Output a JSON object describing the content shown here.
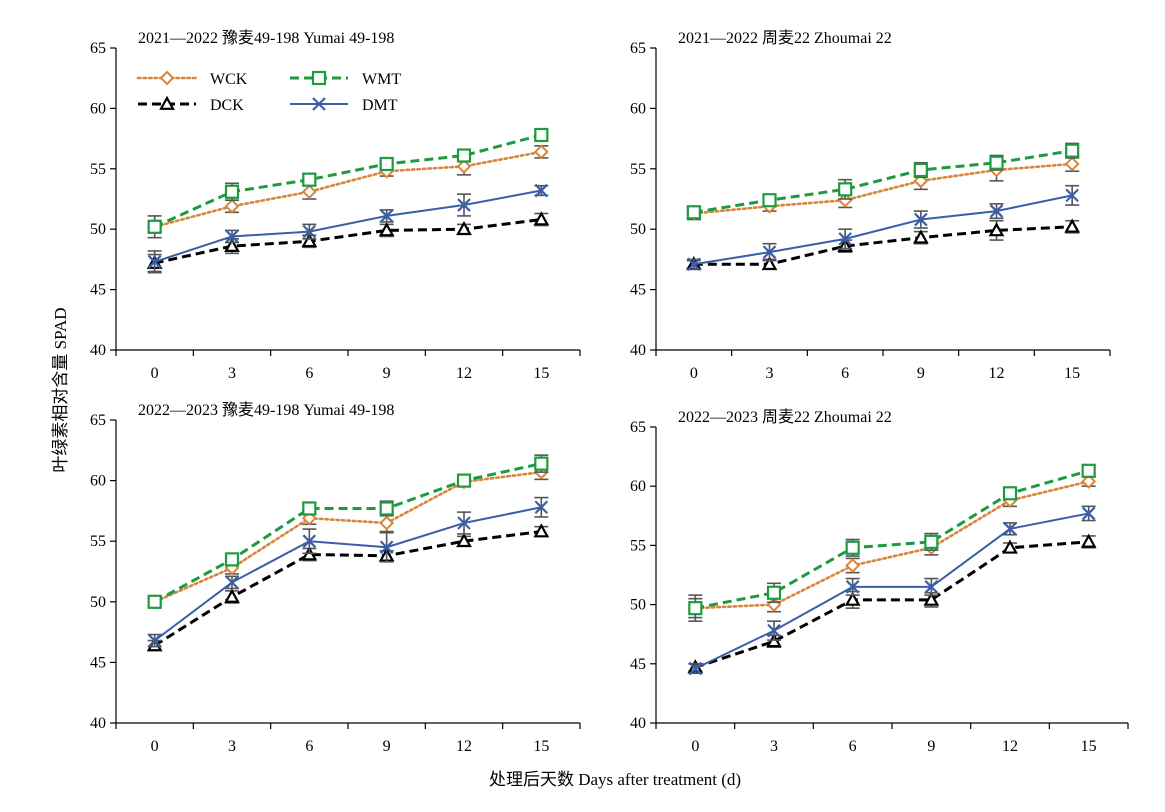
{
  "figure": {
    "ylabel": "叶绿素相对含量 SPAD",
    "xlabel": "处理后天数 Days after treatment (d)"
  },
  "legend": [
    {
      "name": "WCK",
      "color": "#d9853b",
      "dash": "dot",
      "marker": "diamond",
      "position": "top-left"
    },
    {
      "name": "WMT",
      "color": "#1e9a3f",
      "dash": "dash",
      "marker": "square",
      "position": "top-right"
    },
    {
      "name": "DCK",
      "color": "#000000",
      "dash": "dash",
      "marker": "triangle",
      "position": "bottom-left"
    },
    {
      "name": "DMT",
      "color": "#3a5ea8",
      "dash": "solid",
      "marker": "x",
      "position": "bottom-right"
    }
  ],
  "chart_data": [
    {
      "type": "line",
      "title": "2021—2022  豫麦49-198 Yumai 49-198",
      "x": [
        0,
        3,
        6,
        9,
        12,
        15
      ],
      "ylim": [
        40,
        65
      ],
      "yticks": [
        40,
        45,
        50,
        55,
        60,
        65
      ],
      "grid": false,
      "legend": "top-left",
      "series": [
        {
          "name": "WCK",
          "values": [
            50.2,
            51.9,
            53.1,
            54.8,
            55.2,
            56.4
          ],
          "err": [
            0.5,
            0.5,
            0.6,
            0.4,
            0.7,
            0.5
          ]
        },
        {
          "name": "WMT",
          "values": [
            50.2,
            53.1,
            54.1,
            55.4,
            56.1,
            57.8
          ],
          "err": [
            0.9,
            0.7,
            0.5,
            0.4,
            0.5,
            0.5
          ]
        },
        {
          "name": "DCK",
          "values": [
            47.2,
            48.6,
            49.0,
            49.9,
            50.0,
            50.8
          ],
          "err": [
            0.7,
            0.6,
            0.5,
            0.5,
            0.4,
            0.5
          ]
        },
        {
          "name": "DMT",
          "values": [
            47.3,
            49.4,
            49.8,
            51.1,
            52.0,
            53.2
          ],
          "err": [
            0.9,
            0.5,
            0.6,
            0.5,
            0.9,
            0.4
          ]
        }
      ]
    },
    {
      "type": "line",
      "title": "2021—2022  周麦22 Zhoumai 22",
      "x": [
        0,
        3,
        6,
        9,
        12,
        15
      ],
      "ylim": [
        40,
        65
      ],
      "yticks": [
        40,
        45,
        50,
        55,
        60,
        65
      ],
      "grid": false,
      "series": [
        {
          "name": "WCK",
          "values": [
            51.3,
            51.9,
            52.4,
            54.0,
            54.9,
            55.4
          ],
          "err": [
            0.5,
            0.4,
            0.6,
            0.7,
            0.9,
            0.6
          ]
        },
        {
          "name": "WMT",
          "values": [
            51.4,
            52.4,
            53.3,
            54.9,
            55.5,
            56.5
          ],
          "err": [
            0.5,
            0.4,
            0.8,
            0.6,
            0.6,
            0.6
          ]
        },
        {
          "name": "DCK",
          "values": [
            47.1,
            47.1,
            48.6,
            49.3,
            49.9,
            50.2
          ],
          "err": [
            0.3,
            0.4,
            0.5,
            0.5,
            0.8,
            0.5
          ]
        },
        {
          "name": "DMT",
          "values": [
            47.1,
            48.1,
            49.2,
            50.8,
            51.5,
            52.8
          ],
          "err": [
            0.4,
            0.7,
            0.8,
            0.7,
            0.6,
            0.8
          ]
        }
      ]
    },
    {
      "type": "line",
      "title": "2022—2023  豫麦49-198 Yumai 49-198",
      "x": [
        0,
        3,
        6,
        9,
        12,
        15
      ],
      "ylim": [
        40,
        65
      ],
      "yticks": [
        40,
        45,
        50,
        55,
        60,
        65
      ],
      "grid": false,
      "series": [
        {
          "name": "WCK",
          "values": [
            50.0,
            52.8,
            56.9,
            56.5,
            59.9,
            60.7
          ],
          "err": [
            0.3,
            0.5,
            0.5,
            0.7,
            0.4,
            0.6
          ]
        },
        {
          "name": "WMT",
          "values": [
            50.0,
            53.5,
            57.7,
            57.7,
            60.0,
            61.4
          ],
          "err": [
            0.3,
            0.4,
            0.5,
            0.6,
            0.4,
            0.7
          ]
        },
        {
          "name": "DCK",
          "values": [
            46.4,
            50.4,
            53.9,
            53.8,
            55.0,
            55.8
          ],
          "err": [
            0.4,
            0.5,
            0.5,
            0.4,
            0.4,
            0.4
          ]
        },
        {
          "name": "DMT",
          "values": [
            46.8,
            51.6,
            55.0,
            54.5,
            56.5,
            57.8
          ],
          "err": [
            0.5,
            0.5,
            1.0,
            1.2,
            0.9,
            0.8
          ]
        }
      ]
    },
    {
      "type": "line",
      "title": "2022—2023  周麦22 Zhoumai 22",
      "x": [
        0,
        3,
        6,
        9,
        12,
        15
      ],
      "ylim": [
        40,
        65
      ],
      "yticks": [
        40,
        45,
        50,
        55,
        60,
        65
      ],
      "grid": false,
      "series": [
        {
          "name": "WCK",
          "values": [
            49.7,
            50.0,
            53.3,
            54.8,
            58.8,
            60.4
          ],
          "err": [
            0.8,
            0.6,
            0.6,
            0.6,
            0.5,
            0.4
          ]
        },
        {
          "name": "WMT",
          "values": [
            49.7,
            51.0,
            54.8,
            55.3,
            59.4,
            61.3
          ],
          "err": [
            1.1,
            0.8,
            0.7,
            0.7,
            0.5,
            0.5
          ]
        },
        {
          "name": "DCK",
          "values": [
            44.7,
            46.9,
            50.4,
            50.4,
            54.8,
            55.3
          ],
          "err": [
            0.3,
            0.5,
            0.7,
            0.6,
            0.4,
            0.5
          ]
        },
        {
          "name": "DMT",
          "values": [
            44.6,
            47.8,
            51.5,
            51.5,
            56.4,
            57.7
          ],
          "err": [
            0.4,
            0.8,
            0.7,
            0.7,
            0.5,
            0.6
          ]
        }
      ]
    }
  ]
}
